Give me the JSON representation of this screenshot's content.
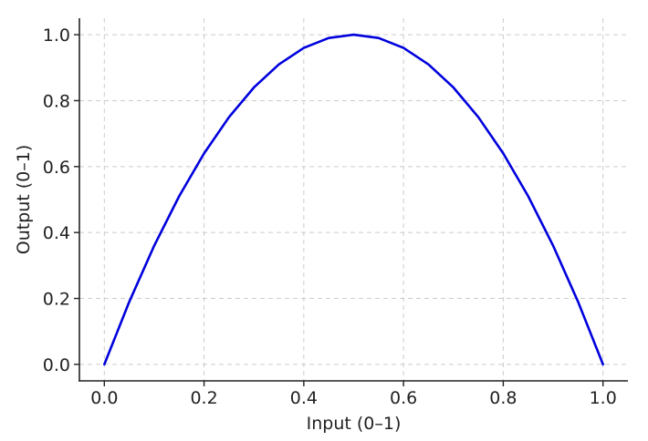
{
  "chart_data": {
    "type": "line",
    "title": "",
    "xlabel": "Input (0–1)",
    "ylabel": "Output (0–1)",
    "xlim": [
      -0.05,
      1.05
    ],
    "ylim": [
      -0.05,
      1.05
    ],
    "xticks": [
      0.0,
      0.2,
      0.4,
      0.6,
      0.8,
      1.0
    ],
    "xtick_labels": [
      "0.0",
      "0.2",
      "0.4",
      "0.6",
      "0.8",
      "1.0"
    ],
    "yticks": [
      0.0,
      0.2,
      0.4,
      0.6,
      0.8,
      1.0
    ],
    "ytick_labels": [
      "0.0",
      "0.2",
      "0.4",
      "0.6",
      "0.8",
      "1.0"
    ],
    "grid": true,
    "legend": "none",
    "series": [
      {
        "color": "#0000dd",
        "x": [
          0.0,
          0.05,
          0.1,
          0.15,
          0.2,
          0.25,
          0.3,
          0.35,
          0.4,
          0.45,
          0.5,
          0.55,
          0.6,
          0.65,
          0.7,
          0.75,
          0.8,
          0.85,
          0.9,
          0.95,
          1.0
        ],
        "y": [
          0.0,
          0.19,
          0.36,
          0.51,
          0.64,
          0.75,
          0.84,
          0.91,
          0.96,
          0.99,
          1.0,
          0.99,
          0.96,
          0.91,
          0.84,
          0.75,
          0.64,
          0.51,
          0.36,
          0.19,
          0.0
        ]
      }
    ]
  }
}
